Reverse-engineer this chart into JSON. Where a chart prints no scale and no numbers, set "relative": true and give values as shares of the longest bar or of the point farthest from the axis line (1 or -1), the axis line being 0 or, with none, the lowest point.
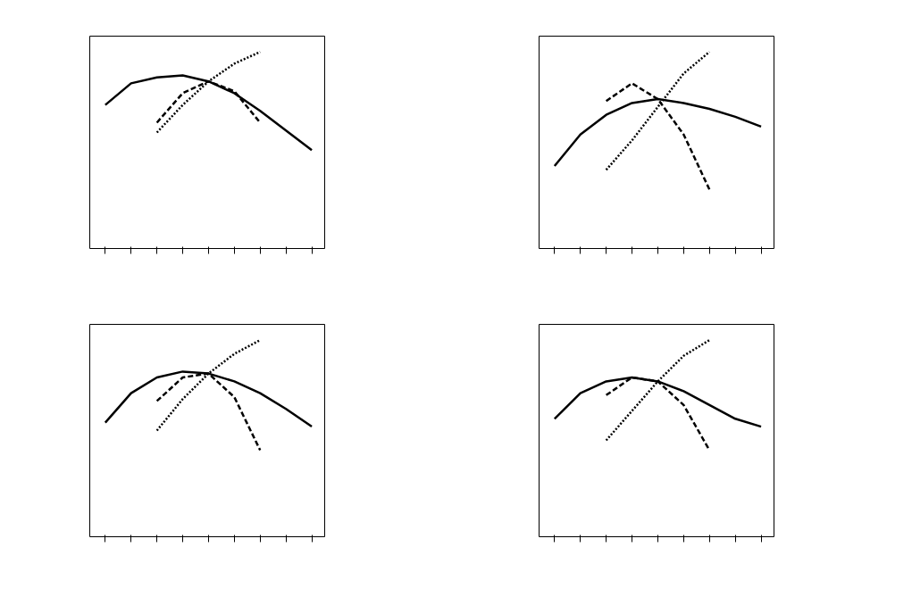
{
  "chart_data": [
    {
      "type": "line",
      "relative": true,
      "categories": [
        null,
        null,
        null,
        null,
        null,
        null,
        null,
        null,
        null
      ],
      "series": [
        {
          "color": "#000000",
          "line_style": "solid",
          "values": [
            0.73,
            0.84,
            0.87,
            0.88,
            0.85,
            0.79,
            0.7,
            0.6,
            0.5
          ]
        },
        {
          "color": "#000000",
          "line_style": "dashed",
          "values": [
            null,
            null,
            0.64,
            0.79,
            0.85,
            0.8,
            0.64,
            null,
            null
          ]
        },
        {
          "color": "#000000",
          "line_style": "dotted",
          "values": [
            null,
            null,
            0.59,
            0.73,
            0.85,
            0.94,
            1.0,
            null,
            null
          ]
        }
      ]
    },
    {
      "type": "line",
      "relative": true,
      "categories": [
        null,
        null,
        null,
        null,
        null,
        null,
        null,
        null,
        null
      ],
      "series": [
        {
          "color": "#000000",
          "line_style": "solid",
          "values": [
            0.42,
            0.58,
            0.68,
            0.74,
            0.76,
            0.74,
            0.71,
            0.67,
            0.62
          ]
        },
        {
          "color": "#000000",
          "line_style": "dashed",
          "values": [
            null,
            null,
            0.75,
            0.84,
            0.76,
            0.58,
            0.3,
            null,
            null
          ]
        },
        {
          "color": "#000000",
          "line_style": "dotted",
          "values": [
            null,
            null,
            0.4,
            0.55,
            0.72,
            0.89,
            1.0,
            null,
            null
          ]
        }
      ]
    },
    {
      "type": "line",
      "relative": true,
      "categories": [
        null,
        null,
        null,
        null,
        null,
        null,
        null,
        null,
        null
      ],
      "series": [
        {
          "color": "#000000",
          "line_style": "solid",
          "values": [
            0.58,
            0.73,
            0.81,
            0.84,
            0.83,
            0.79,
            0.73,
            0.65,
            0.56
          ]
        },
        {
          "color": "#000000",
          "line_style": "dashed",
          "values": [
            null,
            null,
            0.69,
            0.81,
            0.83,
            0.71,
            0.44,
            null,
            null
          ]
        },
        {
          "color": "#000000",
          "line_style": "dotted",
          "values": [
            null,
            null,
            0.54,
            0.7,
            0.83,
            0.93,
            1.0,
            null,
            null
          ]
        }
      ]
    },
    {
      "type": "line",
      "relative": true,
      "categories": [
        null,
        null,
        null,
        null,
        null,
        null,
        null,
        null,
        null
      ],
      "series": [
        {
          "color": "#000000",
          "line_style": "solid",
          "values": [
            0.6,
            0.73,
            0.79,
            0.81,
            0.79,
            0.74,
            0.67,
            0.6,
            0.56
          ]
        },
        {
          "color": "#000000",
          "line_style": "dashed",
          "values": [
            null,
            null,
            0.72,
            0.81,
            0.79,
            0.67,
            0.44,
            null,
            null
          ]
        },
        {
          "color": "#000000",
          "line_style": "dotted",
          "values": [
            null,
            null,
            0.49,
            0.64,
            0.79,
            0.92,
            1.0,
            null,
            null
          ]
        }
      ]
    }
  ]
}
